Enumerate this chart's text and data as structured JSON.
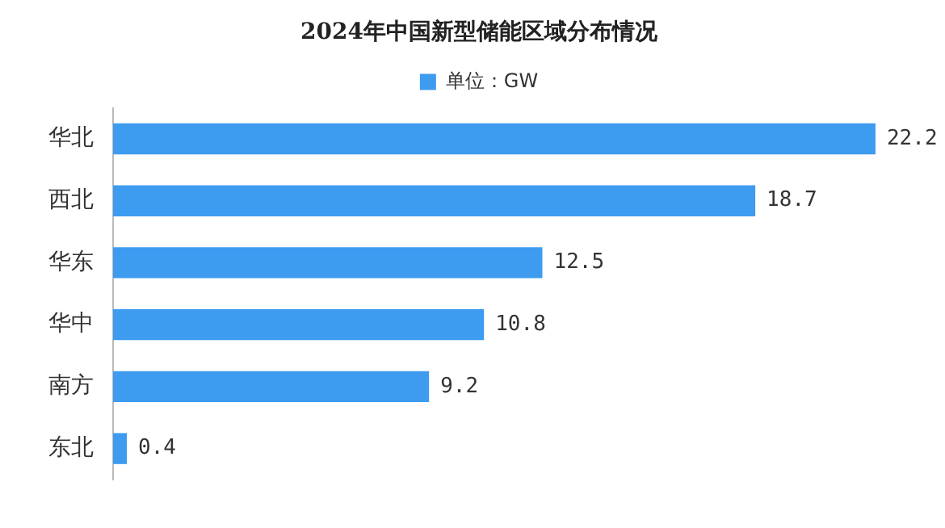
{
  "chart_data": {
    "type": "bar",
    "orientation": "horizontal",
    "title": "2024年中国新型储能区域分布情况",
    "categories": [
      "华北",
      "西北",
      "华东",
      "华中",
      "南方",
      "东北"
    ],
    "series": [
      {
        "name": "单位：GW",
        "color": "#3d9bf0",
        "values": [
          22.2,
          18.7,
          12.5,
          10.8,
          9.2,
          0.4
        ]
      }
    ],
    "data_labels": true,
    "legend": "top"
  }
}
